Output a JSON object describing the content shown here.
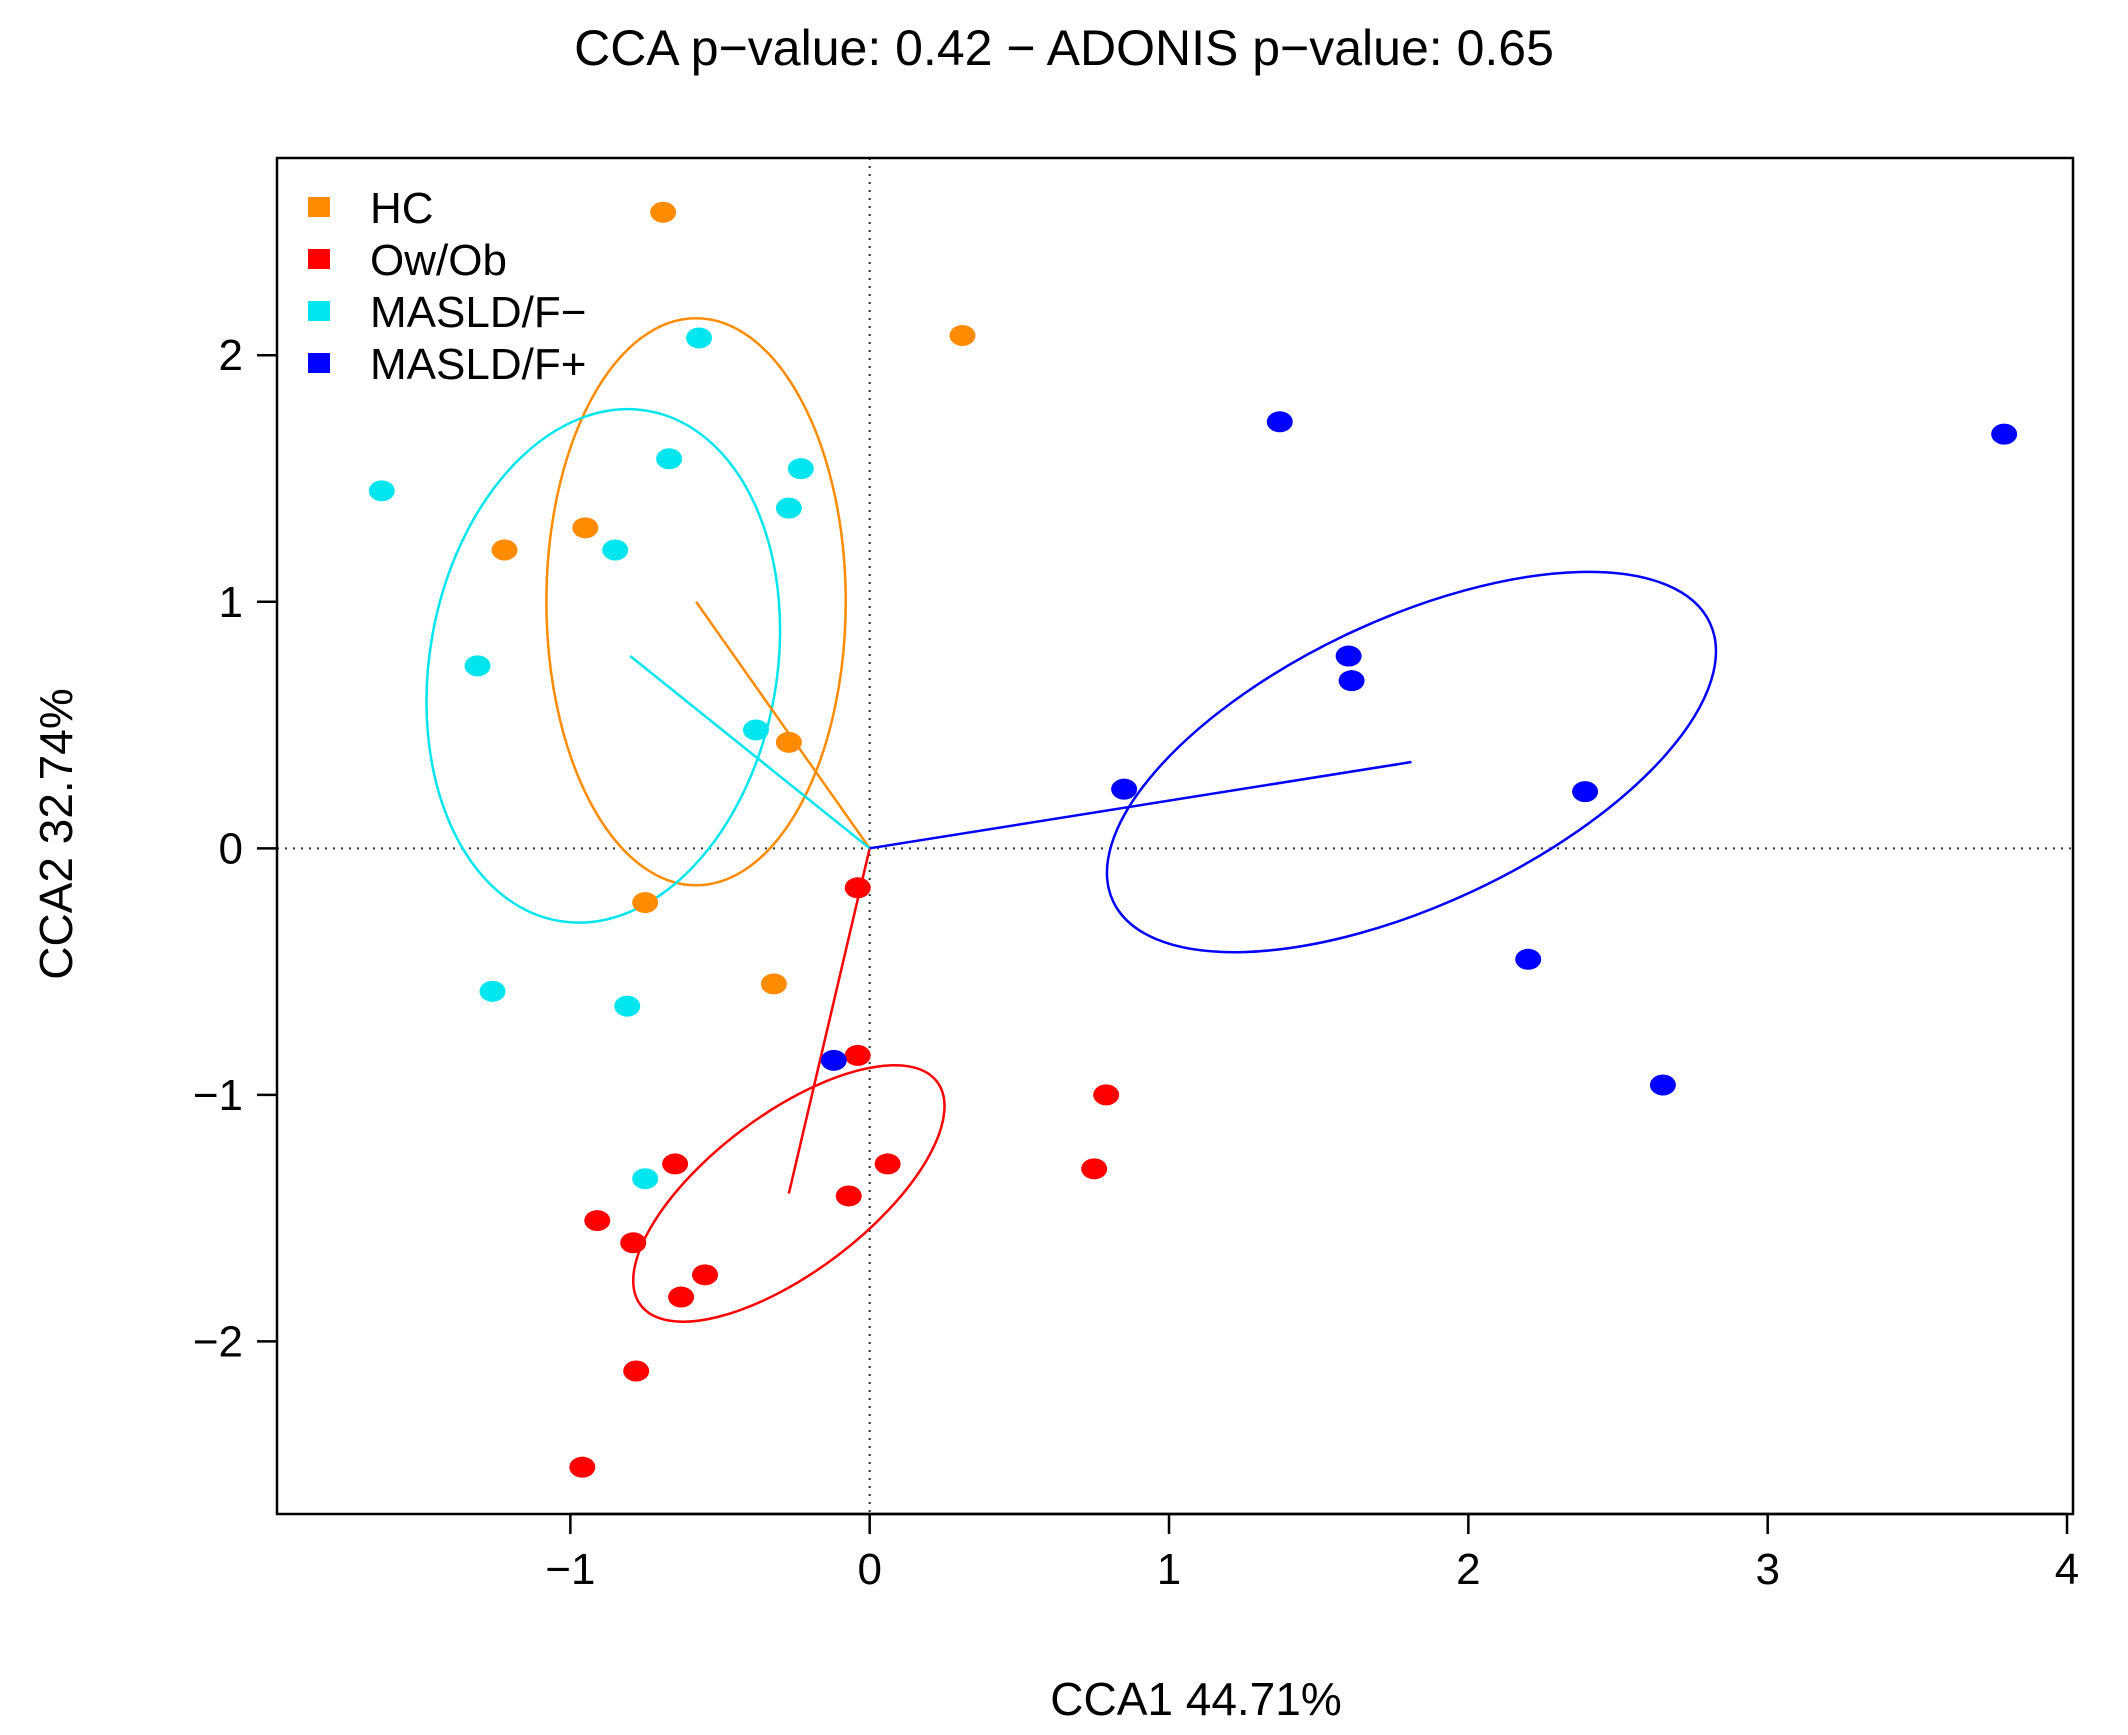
{
  "chart_data": {
    "type": "scatter",
    "title": "CCA p−value: 0.42 − ADONIS p−value: 0.65",
    "xlabel": "CCA1 44.71%",
    "ylabel": "CCA2 32.74%",
    "xlim": [
      -1.98,
      4.02
    ],
    "ylim": [
      -2.7,
      2.8
    ],
    "x_ticks": [
      -1,
      0,
      1,
      2,
      3,
      4
    ],
    "x_tick_labels": [
      "−1",
      "0",
      "1",
      "2",
      "3",
      "4"
    ],
    "y_ticks": [
      -2,
      -1,
      0,
      1,
      2
    ],
    "y_tick_labels": [
      "−2",
      "−1",
      "0",
      "1",
      "2"
    ],
    "reference_lines": {
      "x": 0,
      "y": 0,
      "style": "dotted"
    },
    "legend_position": "top-left",
    "series": [
      {
        "name": "HC",
        "color": "#FF8C00",
        "centroid": [
          -0.58,
          1.0
        ],
        "ellipse": {
          "center": [
            -0.58,
            1.0
          ],
          "x_radius": 0.5,
          "y_radius": 1.15,
          "angle_deg": 0
        },
        "points": [
          [
            -0.69,
            2.58
          ],
          [
            0.31,
            2.08
          ],
          [
            -0.95,
            1.3
          ],
          [
            -1.22,
            1.21
          ],
          [
            -0.27,
            0.43
          ],
          [
            -0.75,
            -0.22
          ],
          [
            -0.32,
            -0.55
          ]
        ]
      },
      {
        "name": "Ow/Ob",
        "color": "#FF0000",
        "centroid": [
          -0.27,
          -1.4
        ],
        "ellipse": {
          "center": [
            -0.27,
            -1.4
          ],
          "x_radius": 0.62,
          "y_radius": 0.32,
          "angle_deg": 37
        },
        "points": [
          [
            -0.04,
            -0.16
          ],
          [
            -0.04,
            -0.84
          ],
          [
            0.79,
            -1.0
          ],
          [
            -0.65,
            -1.28
          ],
          [
            0.06,
            -1.28
          ],
          [
            0.75,
            -1.3
          ],
          [
            -0.07,
            -1.41
          ],
          [
            -0.91,
            -1.51
          ],
          [
            -0.79,
            -1.6
          ],
          [
            -0.55,
            -1.73
          ],
          [
            -0.63,
            -1.82
          ],
          [
            -0.78,
            -2.12
          ],
          [
            -0.96,
            -2.51
          ]
        ]
      },
      {
        "name": "MASLD/F−",
        "color": "#00E5EE",
        "centroid": [
          -0.8,
          0.78
        ],
        "ellipse": {
          "center": [
            -0.89,
            0.74
          ],
          "x_radius": 0.58,
          "y_radius": 1.05,
          "angle_deg": -10
        },
        "points": [
          [
            -0.57,
            2.07
          ],
          [
            -0.67,
            1.58
          ],
          [
            -0.23,
            1.54
          ],
          [
            -1.63,
            1.45
          ],
          [
            -0.27,
            1.38
          ],
          [
            -0.85,
            1.21
          ],
          [
            -1.31,
            0.74
          ],
          [
            -0.38,
            0.48
          ],
          [
            -1.26,
            -0.58
          ],
          [
            -0.81,
            -0.64
          ],
          [
            -0.75,
            -1.34
          ]
        ]
      },
      {
        "name": "MASLD/F+",
        "color": "#0000FF",
        "centroid": [
          1.81,
          0.35
        ],
        "ellipse": {
          "center": [
            1.81,
            0.35
          ],
          "x_radius": 1.1,
          "y_radius": 0.58,
          "angle_deg": 25
        },
        "points": [
          [
            1.37,
            1.73
          ],
          [
            3.79,
            1.68
          ],
          [
            1.6,
            0.78
          ],
          [
            1.61,
            0.68
          ],
          [
            0.85,
            0.24
          ],
          [
            2.39,
            0.23
          ],
          [
            2.2,
            -0.45
          ],
          [
            -0.12,
            -0.86
          ],
          [
            2.65,
            -0.96
          ]
        ]
      }
    ]
  }
}
